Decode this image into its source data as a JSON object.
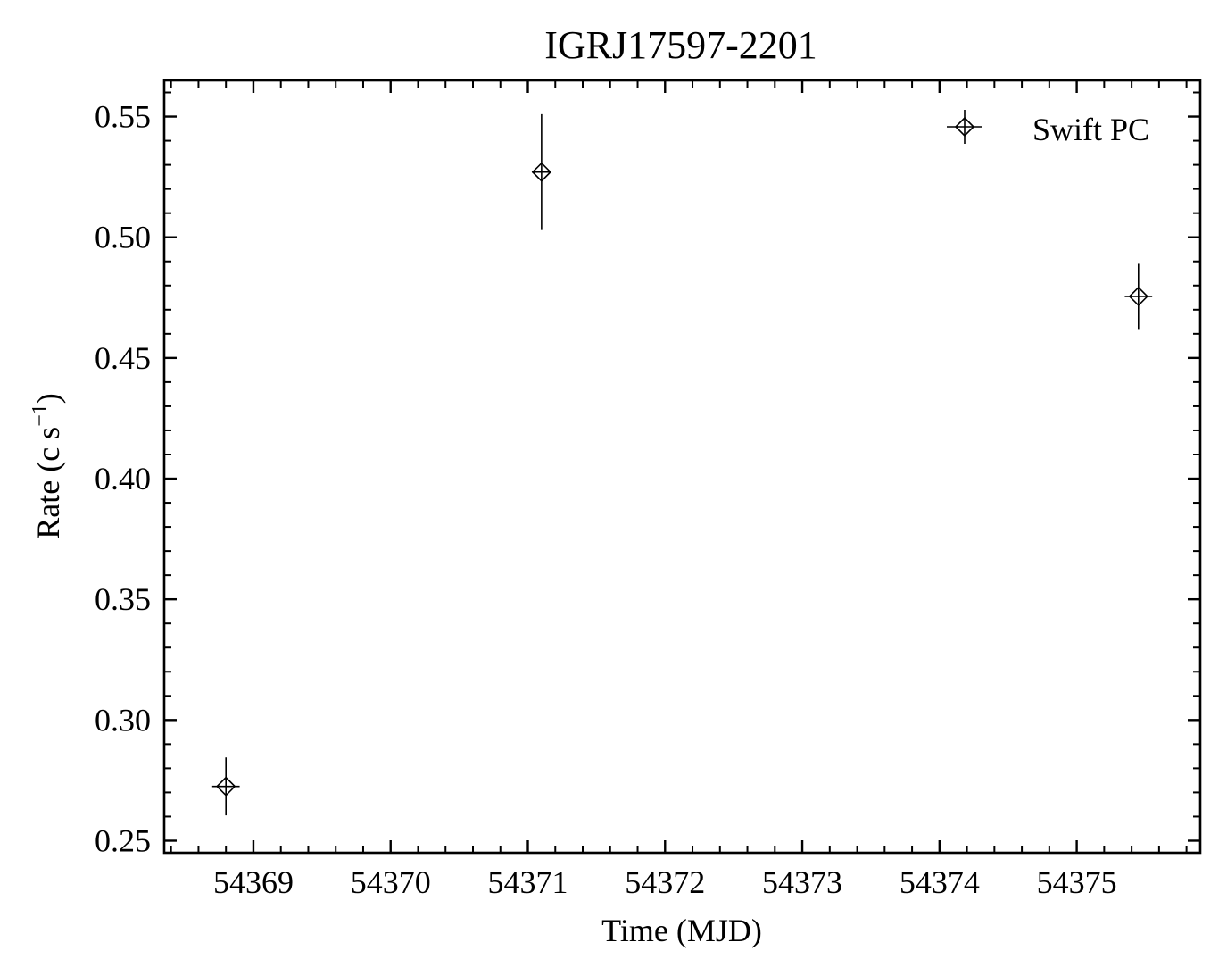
{
  "chart_data": {
    "type": "scatter",
    "title": "IGRJ17597-2201",
    "xlabel": "Time (MJD)",
    "ylabel_main": "Rate (c s",
    "ylabel_sup": "−1",
    "ylabel_close": ")",
    "xlim": [
      54368.35,
      54375.9
    ],
    "ylim": [
      0.245,
      0.565
    ],
    "x_ticks": [
      54369,
      54370,
      54371,
      54372,
      54373,
      54374,
      54375
    ],
    "x_tick_labels": [
      "54369",
      "54370",
      "54371",
      "54372",
      "54373",
      "54374",
      "54375"
    ],
    "y_ticks": [
      0.25,
      0.3,
      0.35,
      0.4,
      0.45,
      0.5,
      0.55
    ],
    "y_tick_labels": [
      "0.25",
      "0.30",
      "0.35",
      "0.40",
      "0.45",
      "0.50",
      "0.55"
    ],
    "grid": false,
    "legend_position": "top-right",
    "series": [
      {
        "name": "Swift PC",
        "color": "#000000",
        "marker": "diamond",
        "points": [
          {
            "x": 54368.8,
            "y": 0.2725,
            "yerr": 0.012,
            "xerr": 0.1
          },
          {
            "x": 54371.1,
            "y": 0.527,
            "yerr": 0.024,
            "xerr": 0.07
          },
          {
            "x": 54375.45,
            "y": 0.4755,
            "yerr": 0.0135,
            "xerr": 0.1
          }
        ]
      }
    ]
  }
}
